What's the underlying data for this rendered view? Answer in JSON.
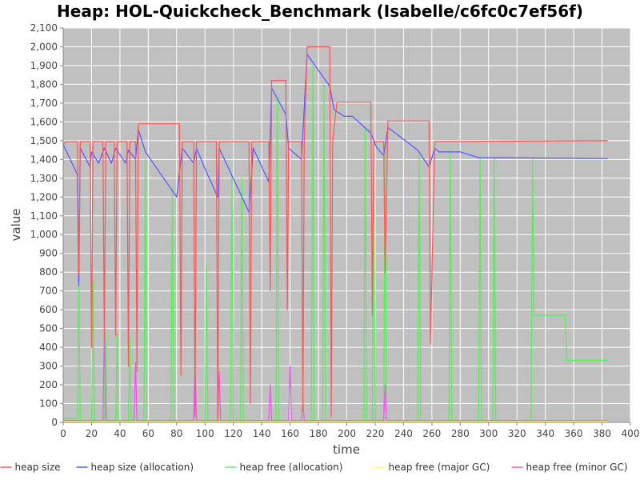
{
  "chart_data": {
    "type": "line",
    "title": "Heap: HOL-Quickcheck_Benchmark (Isabelle/c6fc0c7ef56f)",
    "xlabel": "time",
    "ylabel": "value",
    "xlim": [
      0,
      400
    ],
    "ylim": [
      0,
      2100
    ],
    "x_ticks": [
      0,
      20,
      40,
      60,
      80,
      100,
      120,
      140,
      160,
      180,
      200,
      220,
      240,
      260,
      280,
      300,
      320,
      340,
      360,
      380,
      400
    ],
    "y_ticks": [
      0,
      100,
      200,
      300,
      400,
      500,
      600,
      700,
      800,
      900,
      1000,
      1100,
      1200,
      1300,
      1400,
      1500,
      1600,
      1700,
      1800,
      1900,
      2000,
      2100
    ],
    "x_tick_labels": [
      "0",
      "20",
      "40",
      "60",
      "80",
      "100",
      "120",
      "140",
      "160",
      "180",
      "200",
      "220",
      "240",
      "260",
      "280",
      "300",
      "320",
      "340",
      "360",
      "380",
      "400"
    ],
    "y_tick_labels": [
      "0",
      "100",
      "200",
      "300",
      "400",
      "500",
      "600",
      "700",
      "800",
      "900",
      "1,000",
      "1,100",
      "1,200",
      "1,300",
      "1,400",
      "1,500",
      "1,600",
      "1,700",
      "1,800",
      "1,900",
      "2,000",
      "2,100"
    ],
    "grid": true,
    "legend_position": "bottom",
    "plot_background": "#c0c0c0",
    "series": [
      {
        "name": "heap size",
        "color": "#ff5555",
        "points": [
          [
            0,
            1480
          ],
          [
            2,
            1495
          ],
          [
            10,
            1495
          ],
          [
            11,
            790
          ],
          [
            12,
            1495
          ],
          [
            19,
            1495
          ],
          [
            20,
            400
          ],
          [
            21,
            1495
          ],
          [
            28,
            1495
          ],
          [
            29,
            450
          ],
          [
            30,
            1495
          ],
          [
            36,
            1495
          ],
          [
            37,
            460
          ],
          [
            38,
            1495
          ],
          [
            45,
            1495
          ],
          [
            46,
            300
          ],
          [
            47,
            1495
          ],
          [
            51,
            1495
          ],
          [
            52,
            270
          ],
          [
            53,
            1590
          ],
          [
            82,
            1590
          ],
          [
            83,
            250
          ],
          [
            84,
            1495
          ],
          [
            92,
            1495
          ],
          [
            93,
            30
          ],
          [
            94,
            1495
          ],
          [
            108,
            1495
          ],
          [
            109,
            10
          ],
          [
            110,
            1495
          ],
          [
            131,
            1495
          ],
          [
            132,
            100
          ],
          [
            133,
            1495
          ],
          [
            145,
            1495
          ],
          [
            146,
            700
          ],
          [
            147,
            1820
          ],
          [
            157,
            1820
          ],
          [
            158,
            600
          ],
          [
            159,
            1495
          ],
          [
            168,
            1495
          ],
          [
            169,
            60
          ],
          [
            170,
            1495
          ],
          [
            172,
            2000
          ],
          [
            188,
            2000
          ],
          [
            189,
            30
          ],
          [
            190,
            1495
          ],
          [
            193,
            1705
          ],
          [
            217,
            1705
          ],
          [
            218,
            570
          ],
          [
            219,
            1495
          ],
          [
            226,
            1495
          ],
          [
            227,
            800
          ],
          [
            229,
            1605
          ],
          [
            258,
            1605
          ],
          [
            259,
            420
          ],
          [
            262,
            1495
          ],
          [
            384,
            1500
          ]
        ]
      },
      {
        "name": "heap size (allocation)",
        "color": "#5555ff",
        "points": [
          [
            0,
            1480
          ],
          [
            10,
            1320
          ],
          [
            11,
            730
          ],
          [
            12,
            1460
          ],
          [
            19,
            1360
          ],
          [
            20,
            1440
          ],
          [
            25,
            1380
          ],
          [
            29,
            1460
          ],
          [
            34,
            1380
          ],
          [
            37,
            1460
          ],
          [
            44,
            1380
          ],
          [
            46,
            1450
          ],
          [
            51,
            1400
          ],
          [
            53,
            1560
          ],
          [
            58,
            1440
          ],
          [
            80,
            1200
          ],
          [
            84,
            1460
          ],
          [
            92,
            1380
          ],
          [
            94,
            1460
          ],
          [
            100,
            1350
          ],
          [
            109,
            1200
          ],
          [
            110,
            1460
          ],
          [
            131,
            1120
          ],
          [
            134,
            1460
          ],
          [
            145,
            1280
          ],
          [
            147,
            1780
          ],
          [
            157,
            1640
          ],
          [
            159,
            1460
          ],
          [
            168,
            1400
          ],
          [
            172,
            1960
          ],
          [
            188,
            1790
          ],
          [
            191,
            1665
          ],
          [
            198,
            1630
          ],
          [
            204,
            1630
          ],
          [
            217,
            1540
          ],
          [
            221,
            1465
          ],
          [
            226,
            1420
          ],
          [
            229,
            1570
          ],
          [
            250,
            1450
          ],
          [
            258,
            1360
          ],
          [
            262,
            1460
          ],
          [
            265,
            1440
          ],
          [
            280,
            1440
          ],
          [
            293,
            1410
          ],
          [
            384,
            1405
          ]
        ]
      },
      {
        "name": "heap free (allocation)",
        "color": "#55ee55",
        "points": [
          [
            0,
            20
          ],
          [
            10,
            20
          ],
          [
            11,
            780
          ],
          [
            12,
            10
          ],
          [
            20,
            10
          ],
          [
            21,
            750
          ],
          [
            22,
            10
          ],
          [
            29,
            10
          ],
          [
            30,
            480
          ],
          [
            31,
            10
          ],
          [
            37,
            10
          ],
          [
            38,
            470
          ],
          [
            39,
            10
          ],
          [
            46,
            10
          ],
          [
            47,
            450
          ],
          [
            48,
            10
          ],
          [
            57,
            10
          ],
          [
            58,
            1400
          ],
          [
            59,
            10
          ],
          [
            76,
            10
          ],
          [
            77,
            1260
          ],
          [
            78,
            10
          ],
          [
            100,
            10
          ],
          [
            101,
            850
          ],
          [
            102,
            10
          ],
          [
            118,
            10
          ],
          [
            119,
            1320
          ],
          [
            120,
            10
          ],
          [
            125,
            10
          ],
          [
            126,
            1300
          ],
          [
            127,
            10
          ],
          [
            150,
            10
          ],
          [
            151,
            1720
          ],
          [
            152,
            10
          ],
          [
            175,
            10
          ],
          [
            176,
            1900
          ],
          [
            177,
            10
          ],
          [
            183,
            10
          ],
          [
            184,
            1800
          ],
          [
            185,
            10
          ],
          [
            212,
            10
          ],
          [
            213,
            1560
          ],
          [
            214,
            10
          ],
          [
            218,
            10
          ],
          [
            219,
            1500
          ],
          [
            220,
            10
          ],
          [
            226,
            10
          ],
          [
            227,
            1480
          ],
          [
            228,
            10
          ],
          [
            250,
            10
          ],
          [
            251,
            1420
          ],
          [
            252,
            10
          ],
          [
            272,
            10
          ],
          [
            273,
            1440
          ],
          [
            274,
            10
          ],
          [
            293,
            10
          ],
          [
            294,
            1410
          ],
          [
            295,
            10
          ],
          [
            303,
            10
          ],
          [
            304,
            1405
          ],
          [
            305,
            10
          ],
          [
            330,
            10
          ],
          [
            331,
            1400
          ],
          [
            332,
            570
          ],
          [
            354,
            570
          ],
          [
            355,
            330
          ],
          [
            384,
            330
          ]
        ]
      },
      {
        "name": "heap free (major GC)",
        "color": "#ffff66",
        "points": [
          [
            0,
            5
          ],
          [
            384,
            5
          ]
        ]
      },
      {
        "name": "heap free (minor GC)",
        "color": "#ee55ee",
        "points": [
          [
            0,
            10
          ],
          [
            28,
            10
          ],
          [
            29,
            480
          ],
          [
            30,
            10
          ],
          [
            50,
            10
          ],
          [
            51,
            320
          ],
          [
            52,
            10
          ],
          [
            92,
            10
          ],
          [
            93,
            300
          ],
          [
            94,
            10
          ],
          [
            109,
            10
          ],
          [
            110,
            270
          ],
          [
            111,
            10
          ],
          [
            145,
            10
          ],
          [
            146,
            200
          ],
          [
            147,
            10
          ],
          [
            159,
            10
          ],
          [
            160,
            300
          ],
          [
            161,
            10
          ],
          [
            168,
            10
          ],
          [
            169,
            110
          ],
          [
            170,
            10
          ],
          [
            226,
            10
          ],
          [
            227,
            200
          ],
          [
            228,
            10
          ],
          [
            384,
            10
          ]
        ]
      }
    ]
  }
}
